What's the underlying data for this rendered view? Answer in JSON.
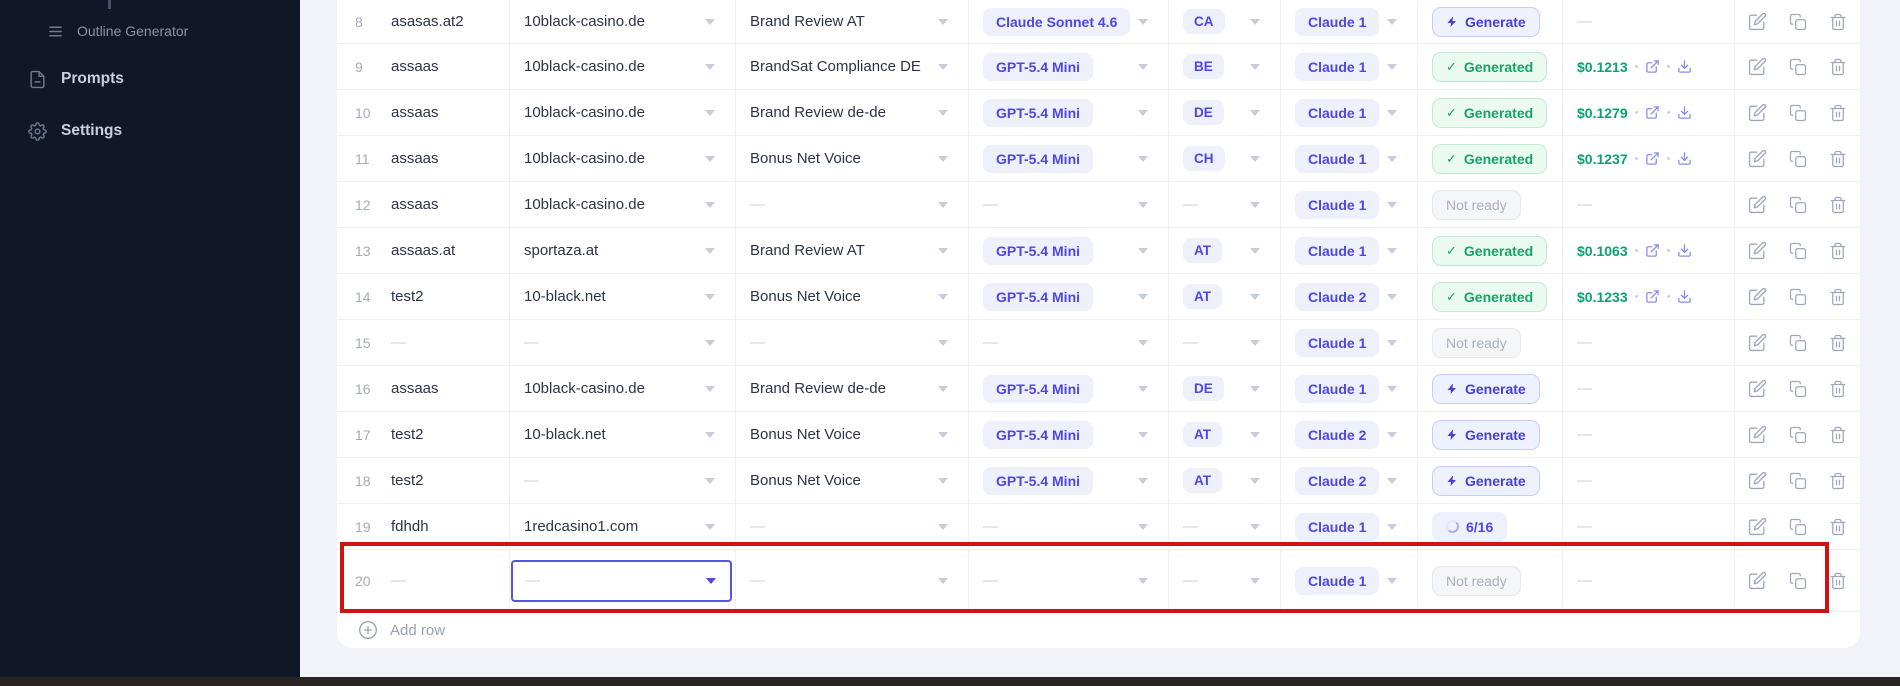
{
  "sidebar": {
    "items": [
      {
        "id": "outline-generator",
        "label": "Outline Generator",
        "icon": "list-icon"
      },
      {
        "id": "prompts",
        "label": "Prompts",
        "icon": "document-icon"
      },
      {
        "id": "settings",
        "label": "Settings",
        "icon": "gear-icon"
      }
    ]
  },
  "table": {
    "empty_placeholder": "—",
    "add_row_label": "Add row",
    "rows": [
      {
        "num": "8",
        "name": "asasas.at2",
        "domain": "10black-casino.de",
        "prompt": "Brand Review AT",
        "model": "Claude Sonnet 4.6",
        "country": "CA",
        "profile": "Claude 1",
        "status": {
          "type": "generate",
          "label": "Generate"
        },
        "cost": ""
      },
      {
        "num": "9",
        "name": "assaas",
        "domain": "10black-casino.de",
        "prompt": "BrandSat Compliance DE",
        "model": "GPT-5.4 Mini",
        "country": "BE",
        "profile": "Claude 1",
        "status": {
          "type": "generated",
          "label": "Generated"
        },
        "cost": "$0.1213"
      },
      {
        "num": "10",
        "name": "assaas",
        "domain": "10black-casino.de",
        "prompt": "Brand Review de-de",
        "model": "GPT-5.4 Mini",
        "country": "DE",
        "profile": "Claude 1",
        "status": {
          "type": "generated",
          "label": "Generated"
        },
        "cost": "$0.1279"
      },
      {
        "num": "11",
        "name": "assaas",
        "domain": "10black-casino.de",
        "prompt": "Bonus Net Voice",
        "model": "GPT-5.4 Mini",
        "country": "CH",
        "profile": "Claude 1",
        "status": {
          "type": "generated",
          "label": "Generated"
        },
        "cost": "$0.1237"
      },
      {
        "num": "12",
        "name": "assaas",
        "domain": "10black-casino.de",
        "prompt": "",
        "model": "",
        "country": "",
        "profile": "Claude 1",
        "status": {
          "type": "not_ready",
          "label": "Not ready"
        },
        "cost": ""
      },
      {
        "num": "13",
        "name": "assaas.at",
        "domain": "sportaza.at",
        "prompt": "Brand Review AT",
        "model": "GPT-5.4 Mini",
        "country": "AT",
        "profile": "Claude 1",
        "status": {
          "type": "generated",
          "label": "Generated"
        },
        "cost": "$0.1063"
      },
      {
        "num": "14",
        "name": "test2",
        "domain": "10-black.net",
        "prompt": "Bonus Net Voice",
        "model": "GPT-5.4 Mini",
        "country": "AT",
        "profile": "Claude 2",
        "status": {
          "type": "generated",
          "label": "Generated"
        },
        "cost": "$0.1233"
      },
      {
        "num": "15",
        "name": "",
        "domain": "",
        "prompt": "",
        "model": "",
        "country": "",
        "profile": "Claude 1",
        "status": {
          "type": "not_ready",
          "label": "Not ready"
        },
        "cost": ""
      },
      {
        "num": "16",
        "name": "assaas",
        "domain": "10black-casino.de",
        "prompt": "Brand Review de-de",
        "model": "GPT-5.4 Mini",
        "country": "DE",
        "profile": "Claude 1",
        "status": {
          "type": "generate",
          "label": "Generate"
        },
        "cost": ""
      },
      {
        "num": "17",
        "name": "test2",
        "domain": "10-black.net",
        "prompt": "Bonus Net Voice",
        "model": "GPT-5.4 Mini",
        "country": "AT",
        "profile": "Claude 2",
        "status": {
          "type": "generate",
          "label": "Generate"
        },
        "cost": ""
      },
      {
        "num": "18",
        "name": "test2",
        "domain": "",
        "prompt": "Bonus Net Voice",
        "model": "GPT-5.4 Mini",
        "country": "AT",
        "profile": "Claude 2",
        "status": {
          "type": "generate",
          "label": "Generate"
        },
        "cost": ""
      },
      {
        "num": "19",
        "name": "fdhdh",
        "domain": "1redcasino1.com",
        "prompt": "",
        "model": "",
        "country": "",
        "profile": "Claude 1",
        "status": {
          "type": "progress",
          "label": "6/16"
        },
        "cost": ""
      },
      {
        "num": "20",
        "name": "",
        "domain": "",
        "prompt": "",
        "model": "",
        "country": "",
        "profile": "Claude 1",
        "status": {
          "type": "not_ready",
          "label": "Not ready"
        },
        "cost": "",
        "focused": true,
        "highlighted": true
      }
    ]
  },
  "annotation": {
    "type": "highlight-rectangle",
    "color": "#cf1212"
  },
  "icons": {
    "dropdown": "chevron-down-icon",
    "status_generate": "lightning-icon",
    "status_generated": "check-icon",
    "status_progress": "spinner-icon",
    "cost_external": "external-link-icon",
    "cost_download": "download-icon",
    "actions": [
      "edit-icon",
      "duplicate-icon",
      "trash-icon"
    ],
    "add_row": "plus-circle-icon"
  },
  "colors": {
    "sidebar_bg": "#101828",
    "accent_indigo": "#4f46e5",
    "pill_bg": "#eef0fc",
    "generated_green": "#17a266",
    "cost_green": "#0aa173",
    "not_ready_gray": "#a9b0bf",
    "focus_border": "#5552e6",
    "annotation_red": "#cf1212",
    "bottom_bar": "#2a2423"
  }
}
